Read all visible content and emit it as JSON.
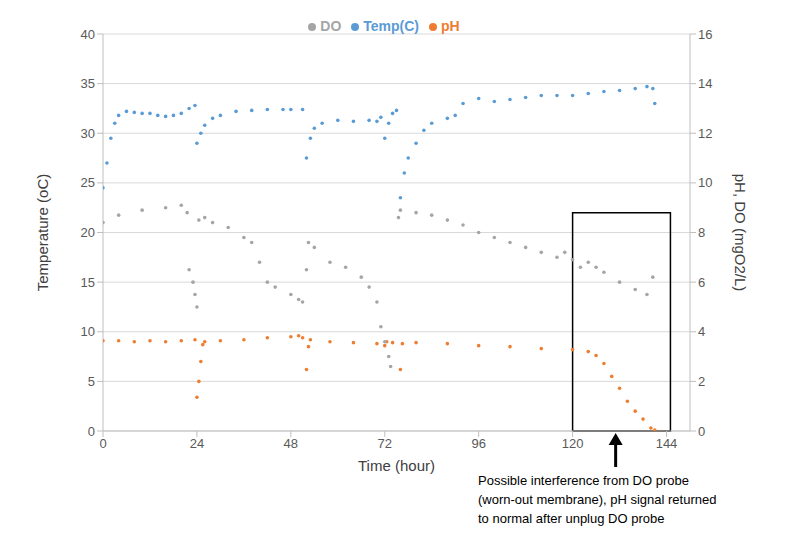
{
  "chart_data": {
    "type": "scatter",
    "x_label": "Time (hour)",
    "y_label": "Temperature (oC)",
    "y2_label": "pH, DO (mgO2/L)",
    "xlim": [
      0,
      150
    ],
    "xticks": [
      0,
      24,
      48,
      72,
      96,
      120,
      144
    ],
    "ylim": [
      0,
      40
    ],
    "yticks": [
      0,
      5,
      10,
      15,
      20,
      25,
      30,
      35,
      40
    ],
    "y2lim": [
      0,
      16
    ],
    "y2ticks": [
      0,
      2,
      4,
      6,
      8,
      10,
      12,
      14,
      16
    ],
    "grid": true,
    "legend": "top",
    "series": [
      {
        "name": "Temp(C)",
        "color": "#5b9bd5",
        "x": [
          0,
          1,
          2,
          3,
          4,
          6,
          8,
          10,
          12,
          14,
          16,
          18,
          20,
          22,
          23.5,
          24,
          25,
          26,
          28,
          30,
          34,
          38,
          42,
          46,
          48,
          51,
          52,
          53,
          54,
          56,
          60,
          64,
          68,
          70,
          71,
          72,
          73,
          74,
          75,
          76,
          77,
          78,
          80,
          82,
          84,
          88,
          90,
          92,
          96,
          100,
          104,
          108,
          112,
          116,
          120,
          124,
          128,
          132,
          136,
          139,
          140.5,
          141
        ],
        "values": [
          24.5,
          27,
          29.5,
          31,
          31.8,
          32.2,
          32.1,
          32,
          32,
          31.8,
          31.7,
          31.8,
          32,
          32.5,
          32.8,
          29,
          30,
          30.8,
          31.5,
          31.8,
          32.2,
          32.3,
          32.4,
          32.4,
          32.4,
          32.4,
          27.5,
          29.5,
          30.5,
          31,
          31.3,
          31.2,
          31.3,
          31.2,
          31.6,
          29.5,
          31,
          32,
          32.3,
          23.5,
          26,
          27.5,
          29,
          30.3,
          31,
          31.5,
          31.8,
          33,
          33.5,
          33.2,
          33.4,
          33.6,
          33.8,
          33.8,
          33.8,
          34,
          34.2,
          34.3,
          34.5,
          34.7,
          34.5,
          33
        ]
      },
      {
        "name": "pH",
        "color": "#ed7d31",
        "x": [
          0,
          4,
          8,
          12,
          16,
          20,
          23.5,
          24,
          24.5,
          25,
          25.5,
          26,
          30,
          36,
          42,
          48,
          50,
          51,
          52,
          52.5,
          53,
          58,
          64,
          70,
          72,
          72.5,
          74,
          76,
          76.5,
          80,
          88,
          96,
          104,
          112,
          120,
          124,
          126,
          128,
          130,
          132,
          134,
          136,
          138,
          140,
          141
        ],
        "values": [
          9.1,
          9.1,
          9.0,
          9.1,
          9.0,
          9.1,
          9.2,
          3.4,
          5,
          7,
          8.7,
          9.0,
          9.1,
          9.2,
          9.4,
          9.5,
          9.6,
          9.4,
          6.2,
          8.5,
          9.2,
          9.0,
          8.9,
          8.8,
          8.6,
          9.0,
          8.9,
          6.2,
          8.8,
          8.9,
          8.8,
          8.6,
          8.5,
          8.3,
          8.2,
          8.0,
          7.6,
          6.8,
          5.5,
          4.3,
          3.0,
          2.0,
          1.2,
          0.3,
          0.1
        ]
      },
      {
        "name": "DO",
        "color": "#a5a5a5",
        "x": [
          0,
          4,
          10,
          16,
          20,
          21.5,
          22,
          23,
          23.5,
          24,
          24.5,
          26,
          28,
          32,
          36,
          38,
          40,
          42,
          44,
          48,
          50,
          51,
          52,
          52.5,
          54,
          58,
          62,
          66,
          68,
          70,
          71,
          72,
          73,
          73.5,
          75.5,
          76,
          80,
          84,
          88,
          92,
          96,
          100,
          104,
          108,
          112,
          116,
          118,
          120,
          122,
          124,
          126,
          128,
          132,
          136,
          139,
          140.5
        ],
        "values": [
          8.4,
          8.7,
          8.9,
          9.0,
          9.1,
          8.8,
          6.5,
          6.0,
          5.5,
          5.0,
          8.5,
          8.6,
          8.4,
          8.2,
          7.8,
          7.6,
          6.8,
          6.0,
          5.8,
          5.5,
          5.3,
          5.2,
          6.5,
          7.6,
          7.4,
          6.8,
          6.6,
          6.2,
          5.8,
          5.2,
          4.2,
          3.6,
          3.0,
          2.6,
          8.6,
          8.9,
          8.8,
          8.7,
          8.5,
          8.3,
          8.0,
          7.8,
          7.6,
          7.4,
          7.2,
          7.0,
          7.2,
          6.9,
          6.6,
          6.8,
          6.6,
          6.4,
          6.0,
          5.7,
          5.5,
          6.2
        ],
        "axis": "y2"
      }
    ],
    "annotation": {
      "text": [
        "Possible interference from DO probe",
        "(worn-out membrane), pH signal returned",
        "to normal after unplug DO probe"
      ],
      "box_x": [
        120,
        145
      ],
      "box_y": [
        0,
        22
      ],
      "arrow_x": 131
    }
  }
}
